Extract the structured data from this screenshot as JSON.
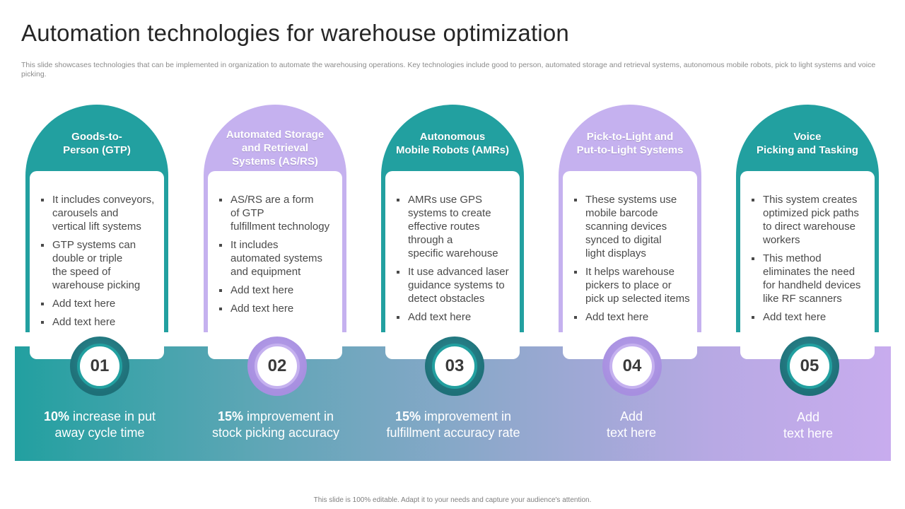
{
  "title": "Automation technologies for warehouse optimization",
  "subtitle": "This slide showcases technologies that can be implemented in organization to automate the warehousing operations. Key technologies include good to person, automated storage and retrieval systems, autonomous mobile robots, pick to light systems and voice picking.",
  "columns": [
    {
      "number": "01",
      "theme": "teal",
      "heading": "Goods-to-\nPerson (GTP)",
      "bullets": [
        "It includes conveyors,\ncarousels and\nvertical lift systems",
        "GTP systems can\ndouble or triple\nthe speed of\nwarehouse picking",
        "Add text here",
        "Add text here"
      ],
      "stat_bold": "10%",
      "stat_text": " increase in put\naway cycle time"
    },
    {
      "number": "02",
      "theme": "purple",
      "heading": "Automated Storage\nand Retrieval\nSystems (AS/RS)",
      "bullets": [
        "AS/RS are a form\nof GTP\nfulfillment  technology",
        "It includes\nautomated systems\nand equipment",
        "Add text here",
        "Add text here"
      ],
      "stat_bold": "15%",
      "stat_text": " improvement in\nstock picking accuracy"
    },
    {
      "number": "03",
      "theme": "teal",
      "heading": "Autonomous\nMobile Robots (AMRs)",
      "bullets": [
        "AMRs use GPS\nsystems to create\neffective routes\nthrough a\nspecific warehouse",
        " It use advanced laser\nguidance systems to\ndetect obstacles",
        "Add text here"
      ],
      "stat_bold": "15%",
      "stat_text": " improvement in\nfulfillment accuracy rate"
    },
    {
      "number": "04",
      "theme": "purple",
      "heading": "Pick-to-Light and\nPut-to-Light Systems",
      "bullets": [
        "These systems use\nmobile barcode\nscanning devices\nsynced to digital\nlight displays",
        "It helps warehouse\npickers to place or\npick up selected items",
        "Add text here"
      ],
      "stat_bold": "",
      "stat_text": "Add\ntext here"
    },
    {
      "number": "05",
      "theme": "teal",
      "heading": "Voice\nPicking and Tasking",
      "bullets": [
        "This system creates\noptimized pick paths\nto direct warehouse\nworkers",
        "This method\neliminates the need\nfor handheld devices\nlike RF scanners",
        "Add text here"
      ],
      "stat_bold": "",
      "stat_text": "Add\ntext here"
    }
  ],
  "footer": "This slide is 100% editable. Adapt it to your needs and capture your audience's attention.",
  "colors": {
    "teal": "#22a0a0",
    "purple": "#c5b1ef"
  }
}
